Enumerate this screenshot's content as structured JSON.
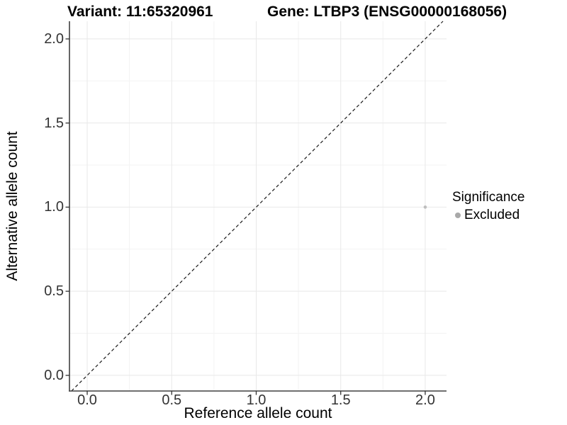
{
  "chart_data": {
    "type": "scatter",
    "title_left": "Variant: 11:65320961",
    "title_right": "Gene: LTBP3 (ENSG00000168056)",
    "xlabel": "Reference allele count",
    "ylabel": "Alternative allele count",
    "xlim": [
      -0.105,
      2.126
    ],
    "ylim": [
      -0.093,
      2.105
    ],
    "x_ticks": {
      "values": [
        0,
        0.5,
        1,
        1.5,
        2
      ],
      "labels": [
        "0.0",
        "0.5",
        "1.0",
        "1.5",
        "2.0"
      ]
    },
    "y_ticks": {
      "values": [
        0,
        0.5,
        1,
        1.5,
        2
      ],
      "labels": [
        "0.0",
        "0.5",
        "1.0",
        "1.5",
        "2.0"
      ]
    },
    "x_minor_ticks": [
      0.25,
      0.75,
      1.25,
      1.75
    ],
    "y_minor_ticks": [
      0.25,
      0.75,
      1.25,
      1.75
    ],
    "grid": "major+minor",
    "identity_line": {
      "slope": 1,
      "intercept": 0,
      "style": "dashed",
      "color": "#1a1a1a"
    },
    "series": [
      {
        "name": "Excluded",
        "point_color": "#bebebe",
        "points": [
          {
            "x": 2.0,
            "y": 1.0
          }
        ]
      }
    ],
    "legend": {
      "title": "Significance",
      "position": "right",
      "entries": [
        {
          "label": "Excluded",
          "color": "#a9a9a9",
          "marker": "circle"
        }
      ]
    }
  }
}
